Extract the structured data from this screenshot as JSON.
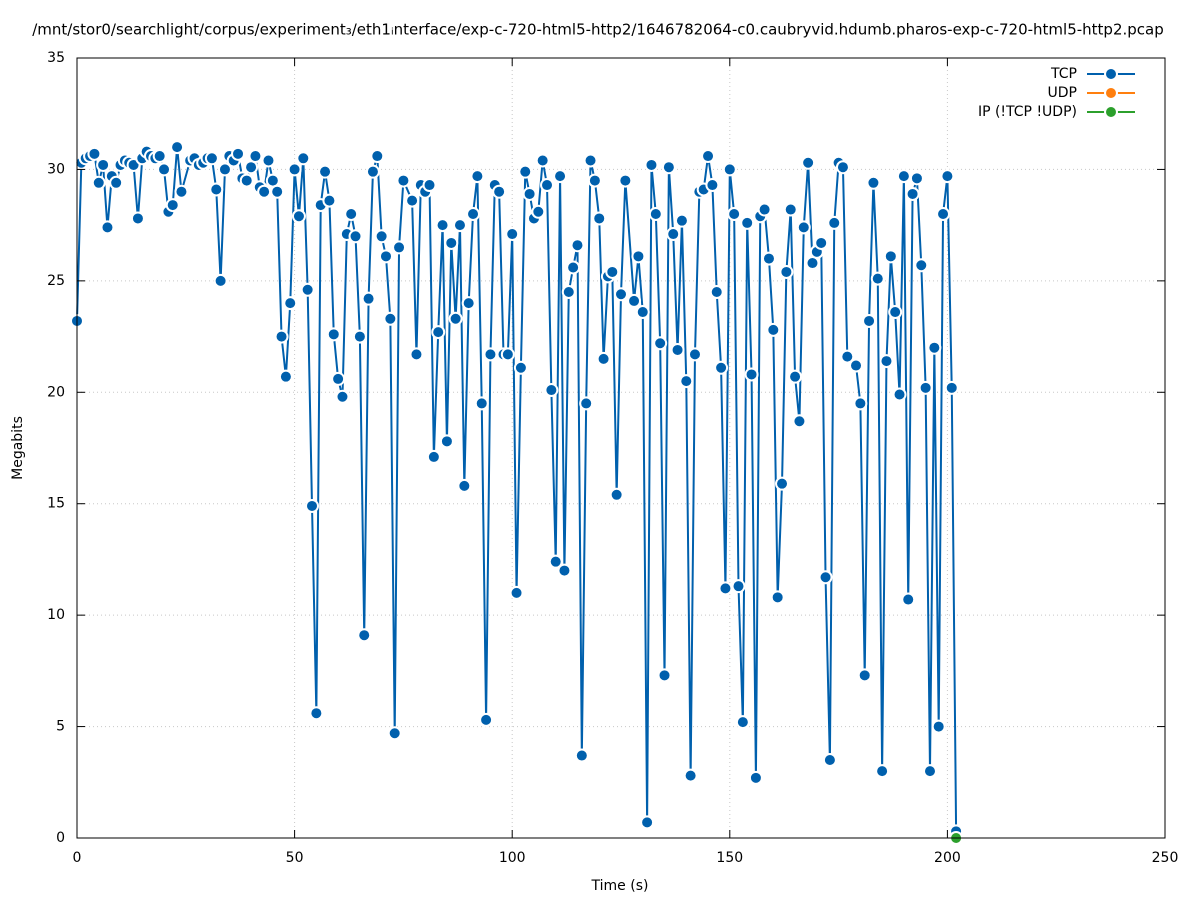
{
  "chart_data": {
    "type": "line",
    "title": "/mnt/stor0/searchlight/corpus/experiment₃/eth1ᵢnterface/exp-c-720-html5-http2/1646782064-c0.caubryvid.hdumb.pharos-exp-c-720-html5-http2.pcap",
    "x_label": "Time (s)",
    "y_label": "Megabits",
    "xlim": [
      0,
      250
    ],
    "xticks": [
      0,
      50,
      100,
      150,
      200,
      250
    ],
    "ylim": [
      0,
      35
    ],
    "yticks": [
      0,
      5,
      10,
      15,
      20,
      25,
      30,
      35
    ],
    "grid": true,
    "legend": "top-right",
    "series": [
      {
        "name": "TCP",
        "color": "#0060ad",
        "x": [
          0,
          1,
          2,
          3,
          4,
          5,
          6,
          7,
          8,
          9,
          10,
          11,
          12,
          13,
          14,
          15,
          16,
          17,
          18,
          19,
          20,
          21,
          22,
          23,
          24,
          26,
          27,
          28,
          29,
          30,
          31,
          32,
          33,
          34,
          35,
          36,
          37,
          38,
          39,
          40,
          41,
          42,
          43,
          44,
          45,
          46,
          47,
          48,
          49,
          50,
          51,
          52,
          53,
          54,
          55,
          56,
          57,
          58,
          59,
          60,
          61,
          62,
          63,
          64,
          65,
          66,
          67,
          68,
          69,
          70,
          71,
          72,
          73,
          74,
          75,
          77,
          78,
          79,
          80,
          81,
          82,
          83,
          84,
          85,
          86,
          87,
          88,
          89,
          90,
          91,
          92,
          93,
          94,
          95,
          96,
          97,
          98,
          99,
          100,
          101,
          102,
          103,
          104,
          105,
          106,
          107,
          108,
          109,
          110,
          111,
          112,
          113,
          114,
          115,
          116,
          117,
          118,
          119,
          120,
          121,
          122,
          123,
          124,
          125,
          126,
          128,
          129,
          130,
          131,
          132,
          133,
          134,
          135,
          136,
          137,
          138,
          139,
          140,
          141,
          142,
          143,
          144,
          145,
          146,
          147,
          148,
          149,
          150,
          151,
          152,
          153,
          154,
          155,
          156,
          157,
          158,
          159,
          160,
          161,
          162,
          163,
          164,
          165,
          166,
          167,
          168,
          169,
          170,
          171,
          172,
          173,
          174,
          175,
          176,
          177,
          179,
          180,
          181,
          182,
          183,
          184,
          185,
          186,
          187,
          188,
          189,
          190,
          191,
          192,
          193,
          194,
          195,
          196,
          197,
          198,
          199,
          200,
          201,
          202
        ],
        "values": [
          23.2,
          30.3,
          30.5,
          30.6,
          30.7,
          29.4,
          30.2,
          27.4,
          29.7,
          29.4,
          30.2,
          30.4,
          30.3,
          30.2,
          27.8,
          30.5,
          30.8,
          30.6,
          30.5,
          30.6,
          30.0,
          28.1,
          28.4,
          31.0,
          29.0,
          30.4,
          30.5,
          30.2,
          30.3,
          30.5,
          30.5,
          29.1,
          25.0,
          30.0,
          30.6,
          30.4,
          30.7,
          29.6,
          29.5,
          30.1,
          30.6,
          29.2,
          29.0,
          30.4,
          29.5,
          29.0,
          22.5,
          20.7,
          24.0,
          30.0,
          27.9,
          30.5,
          24.6,
          14.9,
          5.6,
          28.4,
          29.9,
          28.6,
          22.6,
          20.6,
          19.8,
          27.1,
          28.0,
          27.0,
          22.5,
          9.1,
          24.2,
          29.9,
          30.6,
          27.0,
          26.1,
          23.3,
          4.7,
          26.5,
          29.5,
          28.6,
          21.7,
          29.3,
          29.0,
          29.3,
          17.1,
          22.7,
          27.5,
          17.8,
          26.7,
          23.3,
          27.5,
          15.8,
          24.0,
          28.0,
          29.7,
          19.5,
          5.3,
          21.7,
          29.3,
          29.0,
          21.7,
          21.7,
          27.1,
          11.0,
          21.1,
          29.9,
          28.9,
          27.8,
          28.1,
          30.4,
          29.3,
          20.1,
          12.4,
          29.7,
          12.0,
          24.5,
          25.6,
          26.6,
          3.7,
          19.5,
          30.4,
          29.5,
          27.8,
          21.5,
          25.2,
          25.4,
          15.4,
          24.4,
          29.5,
          24.1,
          26.1,
          23.6,
          0.7,
          30.2,
          28.0,
          22.2,
          7.3,
          30.1,
          27.1,
          21.9,
          27.7,
          20.5,
          2.8,
          21.7,
          29.0,
          29.1,
          30.6,
          29.3,
          24.5,
          21.1,
          11.2,
          30.0,
          28.0,
          11.3,
          5.2,
          27.6,
          20.8,
          2.7,
          27.9,
          28.2,
          26.0,
          22.8,
          10.8,
          15.9,
          25.4,
          28.2,
          20.7,
          18.7,
          27.4,
          30.3,
          25.8,
          26.3,
          26.7,
          11.7,
          3.5,
          27.6,
          30.3,
          30.1,
          21.6,
          21.2,
          19.5,
          7.3,
          23.2,
          29.4,
          25.1,
          3.0,
          21.4,
          26.1,
          23.6,
          19.9,
          29.7,
          10.7,
          28.9,
          29.6,
          25.7,
          20.2,
          3.0,
          22.0,
          5.0,
          28.0,
          29.7,
          20.2,
          0.3
        ]
      },
      {
        "name": "UDP",
        "color": "#ff7f0e",
        "x": [],
        "values": []
      },
      {
        "name": "IP (!TCP  !UDP)",
        "color": "#2ca02c",
        "x": [
          202
        ],
        "values": [
          0
        ]
      }
    ]
  }
}
